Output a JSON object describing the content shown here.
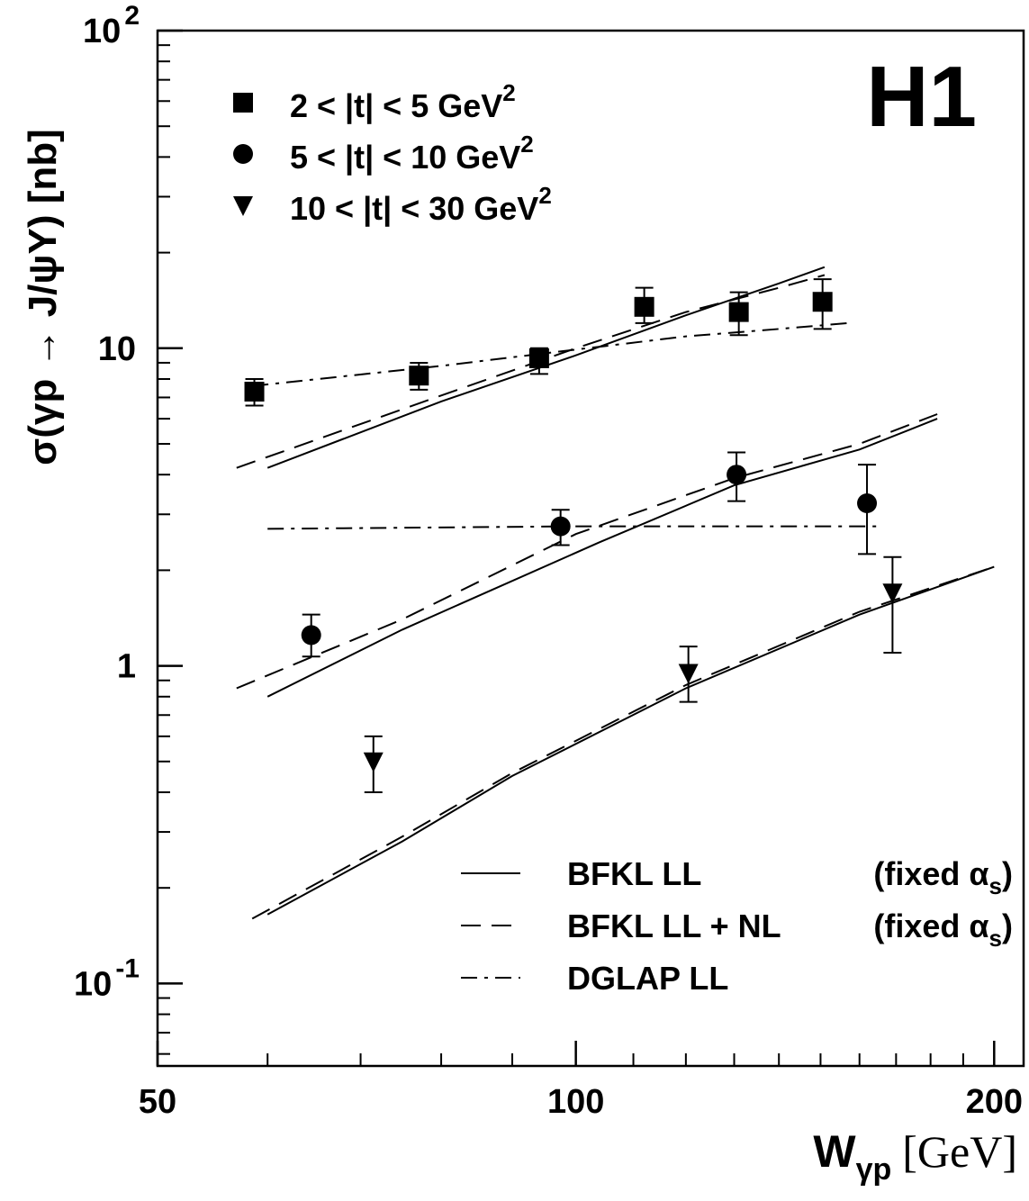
{
  "chart_data": {
    "type": "scatter",
    "xscale": "log",
    "yscale": "log",
    "xlim": [
      50,
      210
    ],
    "ylim": [
      0.055,
      100
    ],
    "x_ticks": [
      50,
      100,
      200
    ],
    "x_tick_labels": [
      "50",
      "100",
      "200"
    ],
    "y_ticks": [
      0.1,
      1,
      10,
      100
    ],
    "y_tick_labels": [
      {
        "base": "10",
        "exp": "-1"
      },
      {
        "base": "1",
        "exp": ""
      },
      {
        "base": "10",
        "exp": ""
      },
      {
        "base": "10",
        "exp": "2"
      }
    ],
    "xlabel": {
      "main": "W",
      "sub": "γp",
      "unit": "[GeV]"
    },
    "ylabel": "σ(γp → J/ψY) [nb]",
    "logo": "H1",
    "series": [
      {
        "name": "2 < |t| < 5 GeV",
        "name_sup": "2",
        "marker": "square",
        "points": [
          {
            "x": 58.7,
            "y": 7.3,
            "lo": 6.6,
            "hi": 8.0
          },
          {
            "x": 77.1,
            "y": 8.2,
            "lo": 7.4,
            "hi": 9.0
          },
          {
            "x": 94.1,
            "y": 9.3,
            "lo": 8.3,
            "hi": 10.0
          },
          {
            "x": 112.0,
            "y": 13.5,
            "lo": 12.0,
            "hi": 15.5
          },
          {
            "x": 131.0,
            "y": 13.0,
            "lo": 11.0,
            "hi": 15.0
          },
          {
            "x": 150.5,
            "y": 14.0,
            "lo": 11.5,
            "hi": 16.5
          }
        ]
      },
      {
        "name": "5 < |t| < 10 GeV",
        "name_sup": "2",
        "marker": "circle",
        "points": [
          {
            "x": 64.5,
            "y": 1.25,
            "lo": 1.07,
            "hi": 1.45
          },
          {
            "x": 97.5,
            "y": 2.75,
            "lo": 2.4,
            "hi": 3.1
          },
          {
            "x": 130.5,
            "y": 4.0,
            "lo": 3.3,
            "hi": 4.7
          },
          {
            "x": 162.0,
            "y": 3.25,
            "lo": 2.25,
            "hi": 4.3
          }
        ]
      },
      {
        "name": "10 < |t| < 30 GeV",
        "name_sup": "2",
        "marker": "triangle-down",
        "points": [
          {
            "x": 71.5,
            "y": 0.5,
            "lo": 0.4,
            "hi": 0.6
          },
          {
            "x": 120.5,
            "y": 0.95,
            "lo": 0.77,
            "hi": 1.15
          },
          {
            "x": 169.0,
            "y": 1.7,
            "lo": 1.1,
            "hi": 2.2
          }
        ]
      }
    ],
    "curves": [
      {
        "group": 1,
        "style": "solid",
        "x": [
          60.0,
          80.0,
          100.0,
          120.0,
          140.0,
          151.0
        ],
        "y": [
          4.2,
          6.8,
          9.5,
          12.7,
          16.0,
          18.0
        ]
      },
      {
        "group": 1,
        "style": "dashed",
        "x": [
          57.0,
          80.0,
          100.0,
          120.0,
          140.0,
          151.0
        ],
        "y": [
          4.2,
          7.1,
          10.0,
          13.0,
          15.5,
          17.0
        ]
      },
      {
        "group": 1,
        "style": "dashdot",
        "x": [
          58.5,
          80.0,
          100.0,
          120.0,
          140.0,
          157.0
        ],
        "y": [
          7.6,
          8.8,
          9.9,
          10.9,
          11.5,
          12.0
        ]
      },
      {
        "group": 2,
        "style": "solid",
        "x": [
          60.0,
          75.0,
          104.0,
          130.0,
          160.0,
          182.0
        ],
        "y": [
          0.8,
          1.3,
          2.45,
          3.7,
          4.8,
          6.0
        ]
      },
      {
        "group": 2,
        "style": "dashed",
        "x": [
          57.0,
          75.0,
          100.0,
          130.0,
          160.0,
          182.0
        ],
        "y": [
          0.85,
          1.4,
          2.6,
          3.9,
          5.0,
          6.2
        ]
      },
      {
        "group": 2,
        "style": "dashdot",
        "x": [
          60.0,
          100.0,
          140.0,
          166.0
        ],
        "y": [
          2.7,
          2.75,
          2.75,
          2.75
        ]
      },
      {
        "group": 3,
        "style": "solid",
        "x": [
          60.0,
          75.0,
          90.0,
          120.0,
          160.0,
          200.0
        ],
        "y": [
          0.165,
          0.28,
          0.45,
          0.85,
          1.45,
          2.05
        ]
      },
      {
        "group": 3,
        "style": "dashed",
        "x": [
          58.5,
          75.0,
          90.0,
          120.0,
          160.0,
          200.0
        ],
        "y": [
          0.16,
          0.29,
          0.46,
          0.87,
          1.48,
          2.05
        ]
      }
    ],
    "curve_legend": [
      {
        "style": "solid",
        "label": "BFKL LL",
        "suffix": "(fixed α",
        "sub": "s",
        "close": ")"
      },
      {
        "style": "dashed",
        "label": "BFKL LL + NL",
        "suffix": "(fixed α",
        "sub": "s",
        "close": ")"
      },
      {
        "style": "dashdot",
        "label": "DGLAP LL",
        "suffix": "",
        "sub": "",
        "close": ""
      }
    ],
    "grid": false,
    "legend_position": "top-left (markers), bottom-right (curves)"
  }
}
